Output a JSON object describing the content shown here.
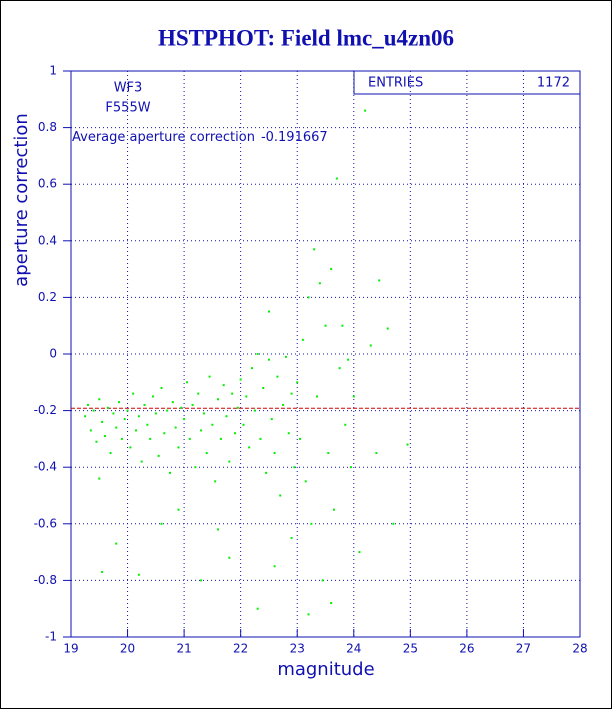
{
  "chart_data": {
    "type": "scatter",
    "title": "HSTPHOT: Field lmc_u4zn06",
    "xlabel": "magnitude",
    "ylabel": "aperture correction",
    "annotations": [
      "WF3",
      "F555W"
    ],
    "average_label": "Average aperture correction",
    "average": -0.191667,
    "stats": {
      "label": "ENTRIES",
      "value": 1172
    },
    "xlim": [
      19,
      28
    ],
    "ylim": [
      -1,
      1
    ],
    "xticks": [
      19,
      20,
      21,
      22,
      23,
      24,
      25,
      26,
      27,
      28
    ],
    "yticks": [
      -1,
      -0.8,
      -0.6,
      -0.4,
      -0.2,
      0,
      0.2,
      0.4,
      0.6,
      0.8,
      1
    ],
    "grid": true,
    "series": [
      {
        "name": "aperture correction",
        "color": "#00ee00",
        "x": [
          19.25,
          19.3,
          19.35,
          19.4,
          19.45,
          19.5,
          19.55,
          19.6,
          19.65,
          19.7,
          19.75,
          19.8,
          19.85,
          19.9,
          19.95,
          19.5,
          19.55,
          19.8,
          20.0,
          20.05,
          20.1,
          20.15,
          20.2,
          20.25,
          20.3,
          20.35,
          20.4,
          20.45,
          20.5,
          20.55,
          20.6,
          20.65,
          20.7,
          20.75,
          20.8,
          20.85,
          20.9,
          20.95,
          20.2,
          20.6,
          20.9,
          21.0,
          21.05,
          21.1,
          21.15,
          21.2,
          21.25,
          21.3,
          21.35,
          21.4,
          21.45,
          21.5,
          21.55,
          21.6,
          21.65,
          21.7,
          21.75,
          21.8,
          21.85,
          21.9,
          21.95,
          21.3,
          21.6,
          21.8,
          22.0,
          22.05,
          22.1,
          22.15,
          22.2,
          22.25,
          22.3,
          22.35,
          22.4,
          22.45,
          22.5,
          22.55,
          22.6,
          22.65,
          22.7,
          22.75,
          22.8,
          22.85,
          22.9,
          22.95,
          22.3,
          22.5,
          22.6,
          22.9,
          23.0,
          23.05,
          23.1,
          23.15,
          23.2,
          23.25,
          23.3,
          23.35,
          23.4,
          23.45,
          23.5,
          23.55,
          23.6,
          23.65,
          23.7,
          23.75,
          23.8,
          23.85,
          23.9,
          23.95,
          23.2,
          23.6,
          24.0,
          24.2,
          24.3,
          24.4,
          24.45,
          24.6,
          24.7,
          24.95,
          24.1
        ],
        "values": [
          -0.22,
          -0.18,
          -0.27,
          -0.2,
          -0.31,
          -0.16,
          -0.24,
          -0.29,
          -0.19,
          -0.35,
          -0.21,
          -0.26,
          -0.17,
          -0.3,
          -0.23,
          -0.44,
          -0.77,
          -0.67,
          -0.2,
          -0.33,
          -0.14,
          -0.27,
          -0.22,
          -0.38,
          -0.18,
          -0.25,
          -0.3,
          -0.15,
          -0.21,
          -0.36,
          -0.12,
          -0.28,
          -0.2,
          -0.42,
          -0.17,
          -0.26,
          -0.33,
          -0.19,
          -0.78,
          -0.6,
          -0.55,
          -0.23,
          -0.1,
          -0.3,
          -0.18,
          -0.4,
          -0.14,
          -0.27,
          -0.21,
          -0.35,
          -0.08,
          -0.25,
          -0.45,
          -0.16,
          -0.3,
          -0.11,
          -0.22,
          -0.38,
          -0.14,
          -0.28,
          -0.19,
          -0.8,
          -0.62,
          -0.72,
          -0.09,
          -0.25,
          -0.15,
          -0.33,
          -0.05,
          -0.2,
          0.0,
          -0.3,
          -0.12,
          -0.42,
          -0.02,
          -0.23,
          -0.35,
          -0.08,
          -0.5,
          -0.18,
          -0.01,
          -0.28,
          -0.14,
          -0.4,
          -0.9,
          0.15,
          -0.75,
          -0.65,
          -0.1,
          -0.3,
          0.05,
          -0.45,
          0.2,
          -0.6,
          0.37,
          -0.15,
          0.25,
          -0.8,
          0.1,
          -0.35,
          0.3,
          -0.55,
          0.62,
          -0.05,
          0.1,
          -0.25,
          -0.02,
          -0.4,
          -0.92,
          -0.88,
          -0.15,
          0.86,
          0.03,
          -0.35,
          0.26,
          0.09,
          -0.6,
          -0.32,
          -0.7
        ]
      }
    ]
  }
}
